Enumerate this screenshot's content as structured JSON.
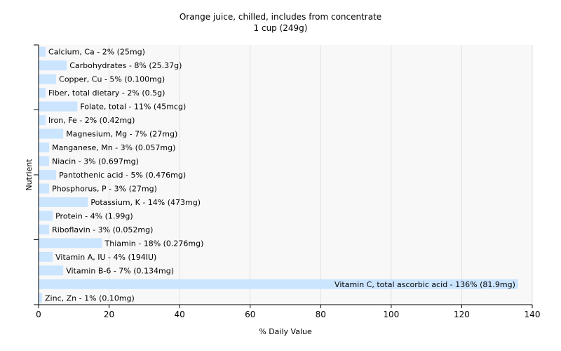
{
  "chart_data": {
    "type": "bar",
    "orientation": "horizontal",
    "title": "Orange juice, chilled, includes from concentrate",
    "subtitle": "1 cup (249g)",
    "xlabel": "% Daily Value",
    "ylabel": "Nutrient",
    "xlim": [
      0,
      140
    ],
    "xticks": [
      0,
      20,
      40,
      60,
      80,
      100,
      120,
      140
    ],
    "grid": true,
    "bar_color": "#cce5ff",
    "plot_background": "#f8f8f8",
    "categories": [
      "Calcium, Ca",
      "Carbohydrates",
      "Copper, Cu",
      "Fiber, total dietary",
      "Folate, total",
      "Iron, Fe",
      "Magnesium, Mg",
      "Manganese, Mn",
      "Niacin",
      "Pantothenic acid",
      "Phosphorus, P",
      "Potassium, K",
      "Protein",
      "Riboflavin",
      "Thiamin",
      "Vitamin A, IU",
      "Vitamin B-6",
      "Vitamin C, total ascorbic acid",
      "Zinc, Zn"
    ],
    "values": [
      2,
      8,
      5,
      2,
      11,
      2,
      7,
      3,
      3,
      5,
      3,
      14,
      4,
      3,
      18,
      4,
      7,
      136,
      1
    ],
    "labels": [
      "Calcium, Ca - 2% (25mg)",
      "Carbohydrates - 8% (25.37g)",
      "Copper, Cu - 5% (0.100mg)",
      "Fiber, total dietary - 2% (0.5g)",
      "Folate, total - 11% (45mcg)",
      "Iron, Fe - 2% (0.42mg)",
      "Magnesium, Mg - 7% (27mg)",
      "Manganese, Mn - 3% (0.057mg)",
      "Niacin - 3% (0.697mg)",
      "Pantothenic acid - 5% (0.476mg)",
      "Phosphorus, P - 3% (27mg)",
      "Potassium, K - 14% (473mg)",
      "Protein - 4% (1.99g)",
      "Riboflavin - 3% (0.052mg)",
      "Thiamin - 18% (0.276mg)",
      "Vitamin A, IU - 4% (194IU)",
      "Vitamin B-6 - 7% (0.134mg)",
      "Vitamin C, total ascorbic acid - 136% (81.9mg)",
      "Zinc, Zn - 1% (0.10mg)"
    ]
  }
}
